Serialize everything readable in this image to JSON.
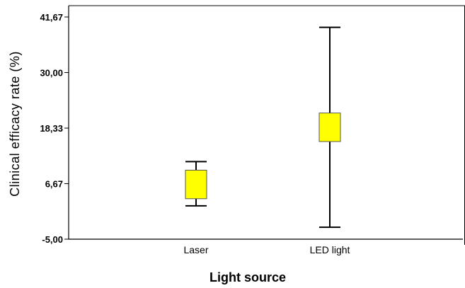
{
  "chart_data": {
    "type": "boxplot",
    "title": "",
    "xlabel": "Light source",
    "ylabel": "Clinical efficacy rate (%)",
    "ylim": [
      -5.0,
      41.67
    ],
    "yticks": [
      -5.0,
      6.67,
      18.33,
      30.0,
      41.67
    ],
    "ytick_labels": [
      "-5,00",
      "6,67",
      "18,33",
      "30,00",
      "41,67"
    ],
    "categories": [
      "Laser",
      "LED light"
    ],
    "boxes": [
      {
        "category": "Laser",
        "whisker_low": 2.0,
        "q1": 3.5,
        "q3": 9.5,
        "whisker_high": 11.3
      },
      {
        "category": "LED light",
        "whisker_low": -2.5,
        "q1": 15.5,
        "q3": 21.5,
        "whisker_high": 39.5
      }
    ],
    "grid": false,
    "legend": "none",
    "colors": {
      "box_fill": "#ffff00",
      "box_stroke": "#555555",
      "whisker": "#000000",
      "axis": "#000000"
    }
  }
}
